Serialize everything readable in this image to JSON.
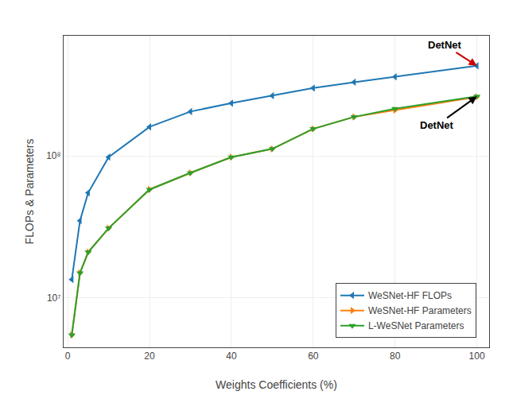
{
  "chart_data": {
    "type": "line",
    "xlabel": "Weights Coefficients (%)",
    "ylabel": "FLOPs & Parameters",
    "log": "y",
    "xlim": [
      -1,
      103
    ],
    "ylim": [
      4500000.0,
      700000000.0
    ],
    "xticks": [
      0,
      20,
      40,
      60,
      80,
      100
    ],
    "yticks": [
      {
        "value": 10000000.0,
        "label": "10⁷"
      },
      {
        "value": 100000000.0,
        "label": "10⁸"
      }
    ],
    "grid": true,
    "legend": "lower right",
    "series": [
      {
        "name": "WeSNet-HF FLOPs",
        "color": "#1f77b4",
        "marker": "triangle-left",
        "x": [
          1,
          3,
          5,
          10,
          20,
          30,
          40,
          50,
          60,
          70,
          80,
          100
        ],
        "values": [
          13500000.0,
          35000000.0,
          55000000.0,
          98000000.0,
          160000000.0,
          205000000.0,
          235000000.0,
          265000000.0,
          300000000.0,
          330000000.0,
          360000000.0,
          430000000.0
        ]
      },
      {
        "name": "WeSNet-HF Parameters",
        "color": "#ff7f0e",
        "marker": "triangle-right",
        "x": [
          1,
          3,
          5,
          10,
          20,
          30,
          40,
          50,
          60,
          70,
          80,
          100
        ],
        "values": [
          5500000.0,
          15000000.0,
          21000000.0,
          31000000.0,
          58000000.0,
          76000000.0,
          98000000.0,
          112000000.0,
          155000000.0,
          188000000.0,
          210000000.0,
          260000000.0
        ]
      },
      {
        "name": "L-WeSNet Parameters",
        "color": "#2ca02c",
        "marker": "triangle-down",
        "x": [
          1,
          3,
          5,
          10,
          20,
          30,
          40,
          50,
          60,
          70,
          80,
          100
        ],
        "values": [
          5500000.0,
          15000000.0,
          21000000.0,
          31000000.0,
          58000000.0,
          76000000.0,
          98000000.0,
          112000000.0,
          155000000.0,
          188000000.0,
          215000000.0,
          262000000.0
        ]
      }
    ],
    "annotations": [
      {
        "text": "DetNet",
        "x": 100,
        "y": 430000000.0,
        "color": "#cc0000"
      },
      {
        "text": "DetNet",
        "x": 100,
        "y": 262000000.0,
        "color": "#000000"
      }
    ]
  }
}
